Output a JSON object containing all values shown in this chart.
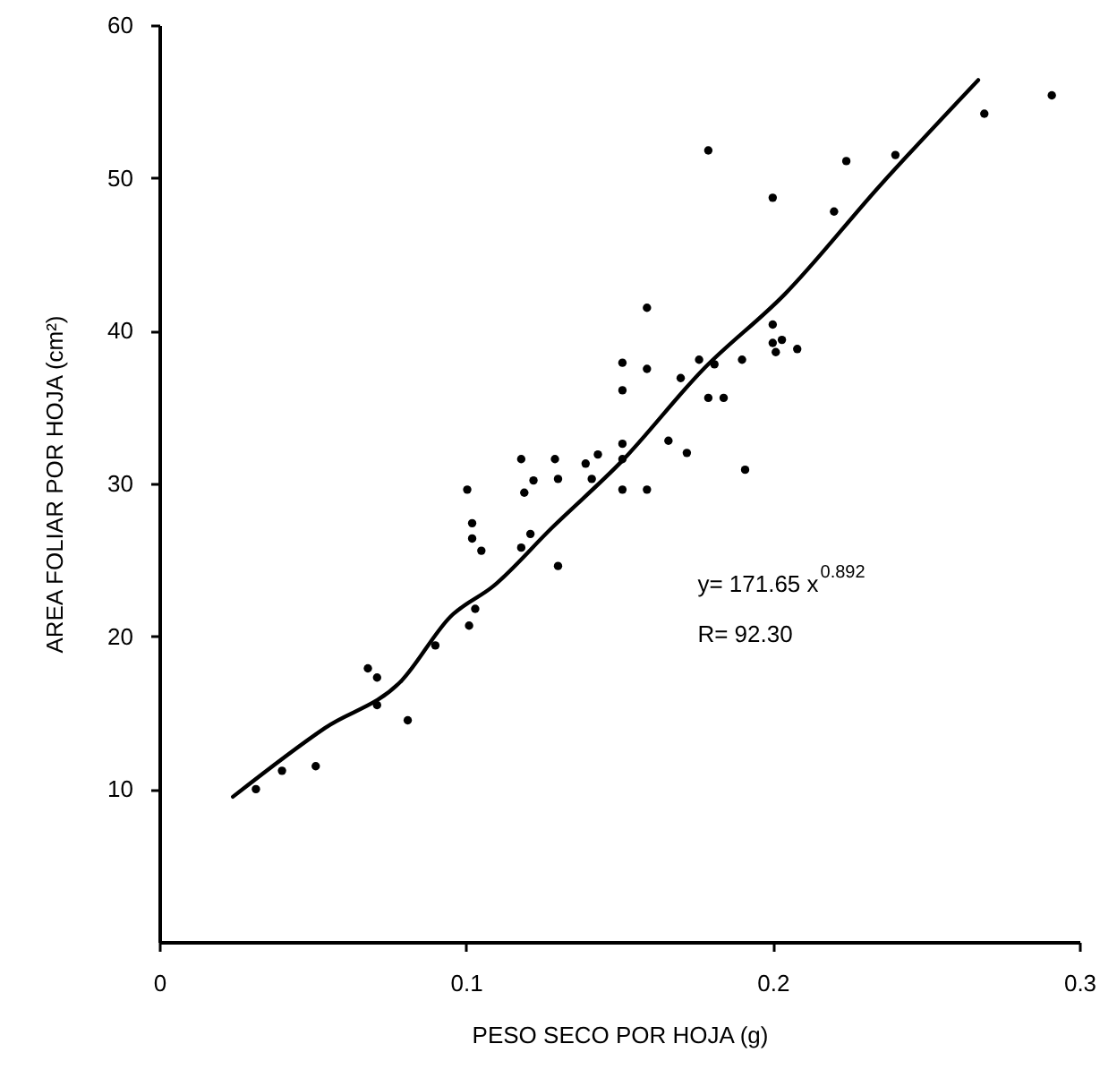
{
  "chart_data": {
    "type": "scatter",
    "xlabel": "PESO SECO POR HOJA (g)",
    "ylabel": "AREA FOLIAR POR HOJA (cm²)",
    "xlim": [
      0,
      0.3
    ],
    "xticks": [
      0,
      0.1,
      0.2,
      0.3
    ],
    "ylim": [
      0,
      60
    ],
    "yticks": [
      10,
      20,
      30,
      40,
      50,
      60
    ],
    "grid": false,
    "marker": "circle",
    "annotations": [
      "y= 171.65 x$^{0.892}$",
      "R= 92.30"
    ],
    "series": [
      {
        "color": "#000000",
        "x": [
          0.0315,
          0.04,
          0.051,
          0.068,
          0.071,
          0.071,
          0.081,
          0.09,
          0.101,
          0.103,
          0.1004,
          0.102,
          0.102,
          0.105,
          0.118,
          0.119,
          0.122,
          0.121,
          0.118,
          0.129,
          0.13,
          0.13,
          0.139,
          0.143,
          0.141,
          0.151,
          0.151,
          0.151,
          0.151,
          0.151,
          0.159,
          0.159,
          0.159,
          0.166,
          0.172,
          0.17,
          0.176,
          0.179,
          0.184,
          0.181,
          0.19,
          0.191,
          0.2,
          0.2,
          0.203,
          0.201,
          0.208,
          0.179,
          0.2,
          0.22,
          0.224,
          0.24,
          0.269,
          0.291
        ],
        "values": [
          10.0,
          11.2,
          11.5,
          17.9,
          17.3,
          15.5,
          14.5,
          19.4,
          20.7,
          21.8,
          29.6,
          27.4,
          26.4,
          25.6,
          31.6,
          29.4,
          30.2,
          26.7,
          25.8,
          31.6,
          30.3,
          24.6,
          31.3,
          31.9,
          30.3,
          32.6,
          31.6,
          29.6,
          36.1,
          37.9,
          41.5,
          37.5,
          29.6,
          32.8,
          32.0,
          36.9,
          38.1,
          35.6,
          35.6,
          37.8,
          38.1,
          30.9,
          40.4,
          39.2,
          39.4,
          38.6,
          38.8,
          51.8,
          48.7,
          47.8,
          51.1,
          51.5,
          54.2,
          55.4
        ]
      },
      {
        "type": "line",
        "marker": "none",
        "color": "#000000",
        "x": [
          0.024,
          0.054,
          0.079,
          0.095,
          0.109,
          0.128,
          0.151,
          0.177,
          0.204,
          0.235,
          0.267
        ],
        "values": [
          9.5,
          14.0,
          17.1,
          21.3,
          23.3,
          27.1,
          31.5,
          37.4,
          42.4,
          49.5,
          56.4
        ]
      }
    ]
  }
}
